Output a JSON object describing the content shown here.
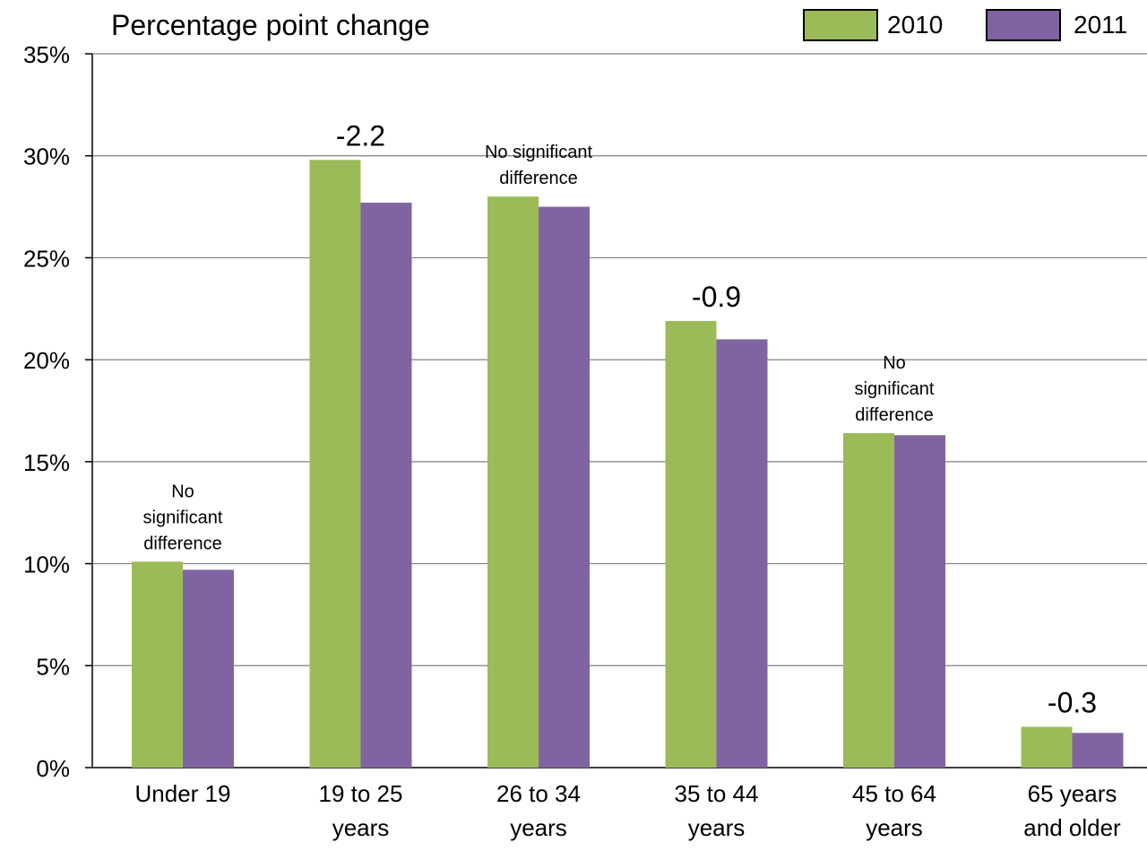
{
  "chart_data": {
    "type": "bar",
    "title": "Percentage point change",
    "categories": [
      "Under 19",
      "19 to 25 years",
      "26 to 34 years",
      "35 to 44 years",
      "45 to 64 years",
      "65 years and older"
    ],
    "category_lines": [
      [
        "Under 19"
      ],
      [
        "19 to 25",
        "years"
      ],
      [
        "26 to 34",
        "years"
      ],
      [
        "35 to 44",
        "years"
      ],
      [
        "45 to 64",
        "years"
      ],
      [
        "65 years",
        "and older"
      ]
    ],
    "series": [
      {
        "name": "2010",
        "color": "#9BBB59",
        "values": [
          10.1,
          29.8,
          28.0,
          21.9,
          16.4,
          2.0
        ]
      },
      {
        "name": "2011",
        "color": "#8064A2",
        "values": [
          9.7,
          27.7,
          27.5,
          21.0,
          16.3,
          1.7
        ]
      }
    ],
    "annotations": [
      {
        "category": "Under 19",
        "lines": [
          "No",
          "significant",
          "difference"
        ]
      },
      {
        "category": "19 to 25 years",
        "lines": [
          "-2.2"
        ]
      },
      {
        "category": "26 to 34 years",
        "lines": [
          "No significant",
          "difference"
        ]
      },
      {
        "category": "35 to 44 years",
        "lines": [
          "-0.9"
        ]
      },
      {
        "category": "45 to 64 years",
        "lines": [
          "No",
          "significant",
          "difference"
        ]
      },
      {
        "category": "65 years and older",
        "lines": [
          "-0.3"
        ]
      }
    ],
    "ylim": [
      0,
      35
    ],
    "y_ticks": [
      "0%",
      "5%",
      "10%",
      "15%",
      "20%",
      "25%",
      "30%",
      "35%"
    ],
    "y_tick_values": [
      0,
      5,
      10,
      15,
      20,
      25,
      30,
      35
    ],
    "xlabel": "",
    "ylabel": "",
    "grid": true,
    "legend_position": "top-right"
  }
}
